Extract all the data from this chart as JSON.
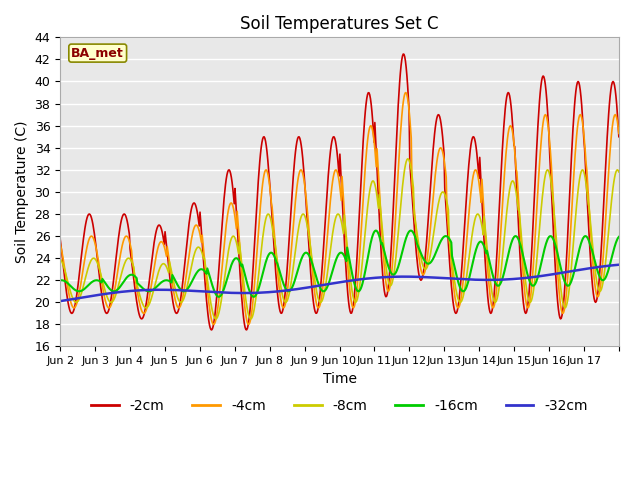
{
  "title": "Soil Temperatures Set C",
  "xlabel": "Time",
  "ylabel": "Soil Temperature (C)",
  "ylim": [
    16,
    44
  ],
  "yticks": [
    16,
    18,
    20,
    22,
    24,
    26,
    28,
    30,
    32,
    34,
    36,
    38,
    40,
    42,
    44
  ],
  "x_labels": [
    "Jun 2",
    "Jun 3",
    "Jun 4",
    "Jun 5",
    "Jun 6",
    "Jun 7",
    "Jun 8",
    "Jun 9",
    "Jun 10",
    "Jun 11",
    "Jun 12",
    "Jun 13",
    "Jun 14",
    "Jun 15",
    "Jun 16",
    "Jun 17"
  ],
  "line_colors": {
    "-2cm": "#cc0000",
    "-4cm": "#ff9900",
    "-8cm": "#cccc00",
    "-16cm": "#00cc00",
    "-32cm": "#3333cc"
  },
  "legend_label": "BA_met",
  "bg_color": "#e8e8e8",
  "grid_color": "#ffffff",
  "n_days": 16,
  "pts_per_day": 48,
  "base_night": 19.5,
  "warming_rate": 0.12
}
